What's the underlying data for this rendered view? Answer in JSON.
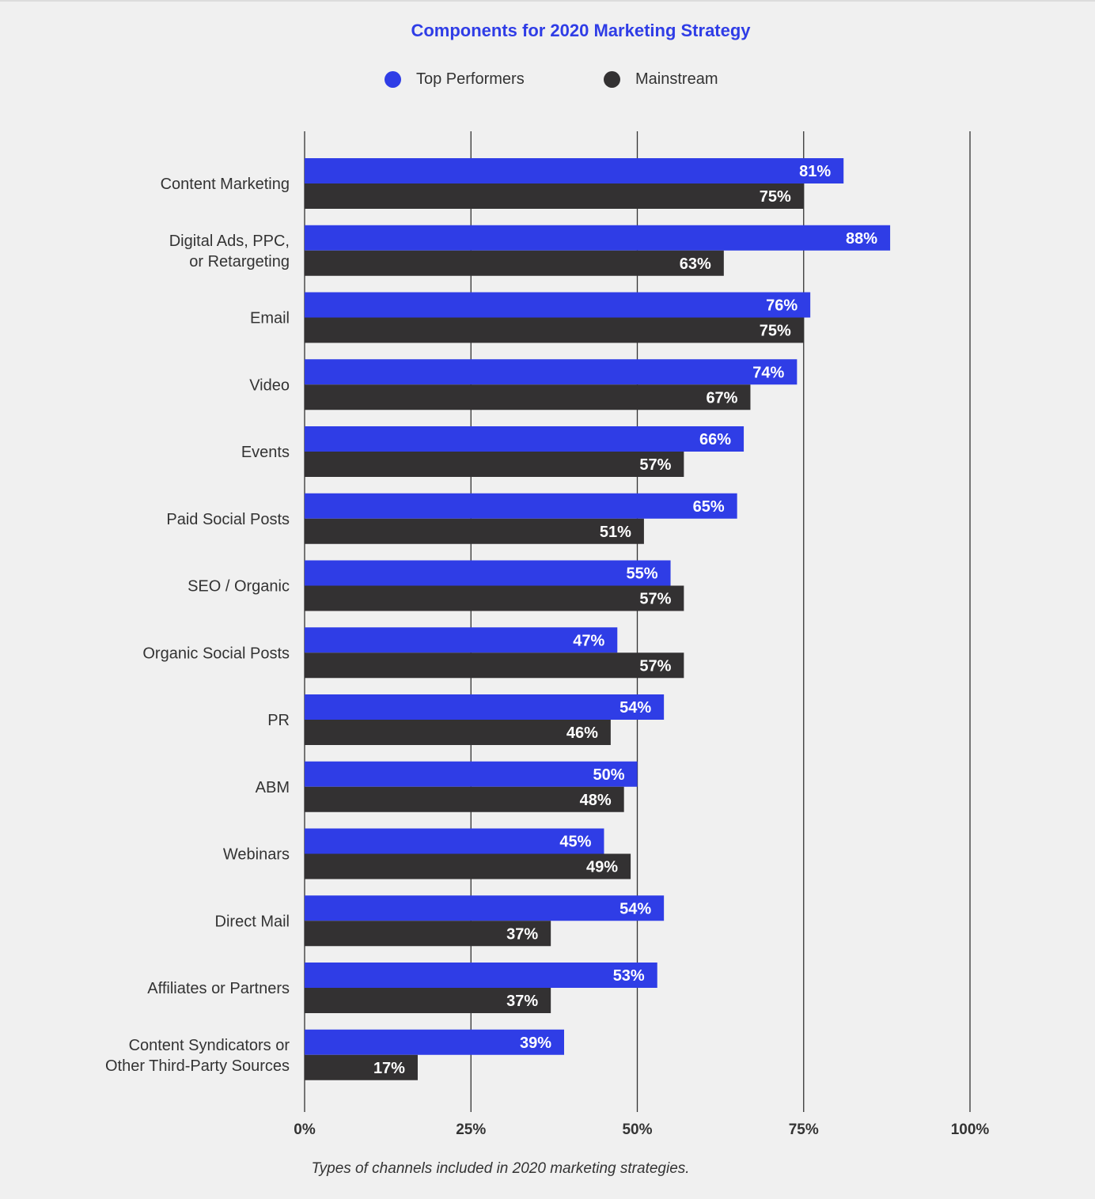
{
  "colors": {
    "background": "#f0f0f0",
    "top_performers": "#2f3de6",
    "mainstream": "#333132",
    "title": "#2f3de6",
    "text": "#333333",
    "gridline": "#333333"
  },
  "legend": [
    {
      "label": "Top Performers",
      "color": "#2f3de6"
    },
    {
      "label": "Mainstream",
      "color": "#333132"
    }
  ],
  "chart_data": {
    "type": "bar",
    "orientation": "horizontal",
    "title": "Components for 2020 Marketing Strategy",
    "caption": "Types of channels included in 2020 marketing strategies.",
    "categories": [
      [
        "Content Marketing"
      ],
      [
        "Digital Ads, PPC,",
        "or Retargeting"
      ],
      [
        "Email"
      ],
      [
        "Video"
      ],
      [
        "Events"
      ],
      [
        "Paid Social Posts"
      ],
      [
        "SEO / Organic"
      ],
      [
        "Organic Social Posts"
      ],
      [
        "PR"
      ],
      [
        "ABM"
      ],
      [
        "Webinars"
      ],
      [
        "Direct Mail"
      ],
      [
        "Affiliates or Partners"
      ],
      [
        "Content Syndicators or",
        "Other Third-Party Sources"
      ]
    ],
    "series": [
      {
        "name": "Top Performers",
        "color": "#2f3de6",
        "values": [
          81,
          88,
          76,
          74,
          66,
          65,
          55,
          47,
          54,
          50,
          45,
          54,
          53,
          39
        ]
      },
      {
        "name": "Mainstream",
        "color": "#333132",
        "values": [
          75,
          63,
          75,
          67,
          57,
          51,
          57,
          57,
          46,
          48,
          49,
          37,
          37,
          17
        ]
      }
    ],
    "value_format": "{v}%",
    "xlim": [
      0,
      100
    ],
    "xticks": [
      0,
      25,
      50,
      75,
      100
    ],
    "xtick_labels": [
      "0%",
      "25%",
      "50%",
      "75%",
      "100%"
    ],
    "grid": true,
    "legend_position": "top-center"
  }
}
